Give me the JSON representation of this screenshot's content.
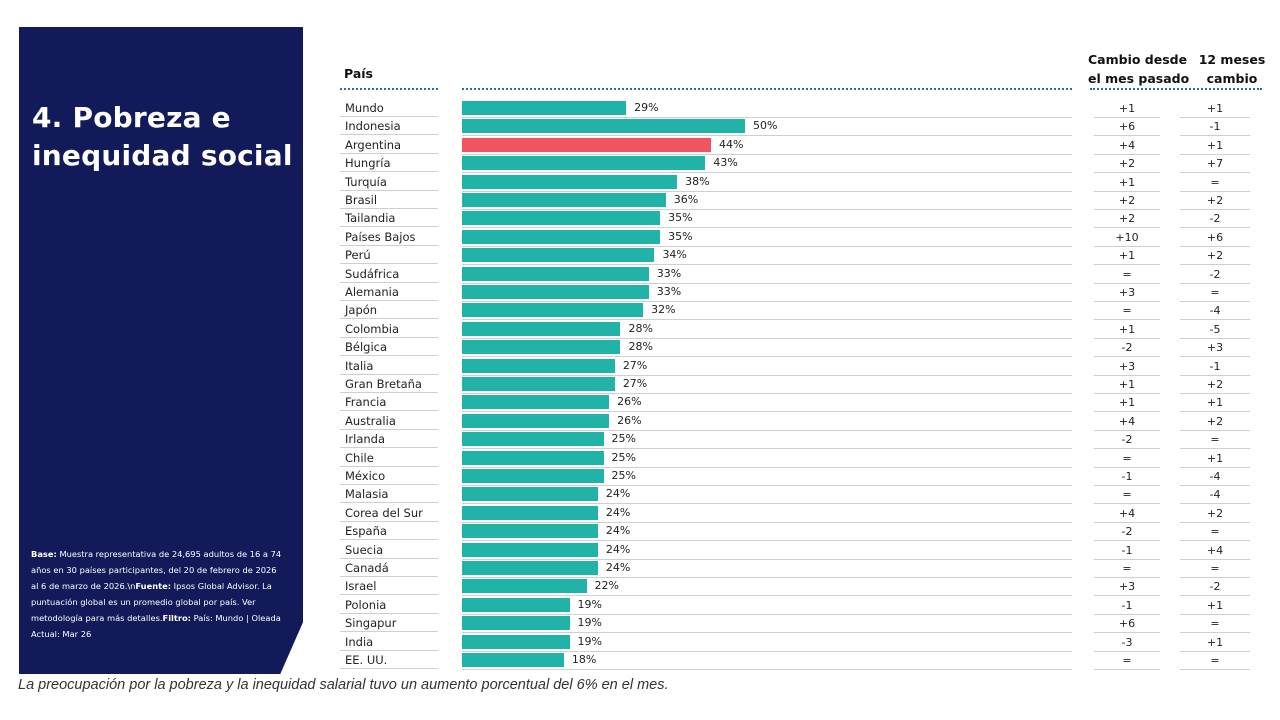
{
  "panel": {
    "title": "4. Pobreza e inequidad social",
    "base_label": "Base:",
    "base_text": " Muestra representativa de 24,695 adultos de 16 a 74 años en 30 países participantes, del 20 de febrero de 2026 al 6 de marzo de 2026.\\n",
    "source_label": "Fuente:",
    "source_text": " Ipsos Global Advisor. La puntuación global es un promedio global por país. Ver metodología para más detalles.",
    "filter_label": "Filtro:",
    "filter_text": " País: Mundo | Oleada Actual: Mar 26"
  },
  "headers": {
    "country": "País",
    "change_month": "Cambio desde el mes pasado",
    "change_12": "12 meses cambio"
  },
  "footnote": "La preocupación por la pobreza y la inequidad salarial tuvo un aumento porcentual del 6% en el mes.",
  "colors": {
    "bar": "#22b3a8",
    "highlight": "#f2545f",
    "panel": "#121a5a"
  },
  "chart_data": {
    "type": "bar",
    "orientation": "horizontal",
    "xlim": [
      0,
      100
    ],
    "highlight": "Argentina",
    "categories": [
      "Mundo",
      "Indonesia",
      "Argentina",
      "Hungría",
      "Turquía",
      "Brasil",
      "Tailandia",
      "Países Bajos",
      "Perú",
      "Sudáfrica",
      "Alemania",
      "Japón",
      "Colombia",
      "Bélgica",
      "Italia",
      "Gran Bretaña",
      "Francia",
      "Australia",
      "Irlanda",
      "Chile",
      "México",
      "Malasia",
      "Corea del Sur",
      "España",
      "Suecia",
      "Canadá",
      "Israel",
      "Polonia",
      "Singapur",
      "India",
      "EE. UU."
    ],
    "values": [
      29,
      50,
      44,
      43,
      38,
      36,
      35,
      35,
      34,
      33,
      33,
      32,
      28,
      28,
      27,
      27,
      26,
      26,
      25,
      25,
      25,
      24,
      24,
      24,
      24,
      24,
      22,
      19,
      19,
      19,
      18
    ],
    "value_labels": [
      "29%",
      "50%",
      "44%",
      "43%",
      "38%",
      "36%",
      "35%",
      "35%",
      "34%",
      "33%",
      "33%",
      "32%",
      "28%",
      "28%",
      "27%",
      "27%",
      "26%",
      "26%",
      "25%",
      "25%",
      "25%",
      "24%",
      "24%",
      "24%",
      "24%",
      "24%",
      "22%",
      "19%",
      "19%",
      "19%",
      "18%"
    ],
    "change_month": [
      "+1",
      "+6",
      "+4",
      "+2",
      "+1",
      "+2",
      "+2",
      "+10",
      "+1",
      "=",
      "+3",
      "=",
      "+1",
      "-2",
      "+3",
      "+1",
      "+1",
      "+4",
      "-2",
      "=",
      "-1",
      "=",
      "+4",
      "-2",
      "-1",
      "=",
      "+3",
      "-1",
      "+6",
      "-3",
      "="
    ],
    "change_12m": [
      "+1",
      "-1",
      "+1",
      "+7",
      "=",
      "+2",
      "-2",
      "+6",
      "+2",
      "-2",
      "=",
      "-4",
      "-5",
      "+3",
      "-1",
      "+2",
      "+1",
      "+2",
      "=",
      "+1",
      "-4",
      "-4",
      "+2",
      "=",
      "+4",
      "=",
      "-2",
      "+1",
      "=",
      "+1",
      "="
    ]
  }
}
